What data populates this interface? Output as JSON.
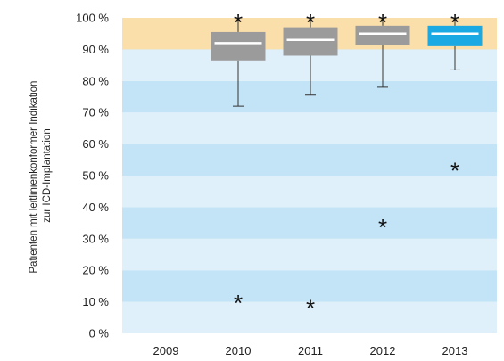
{
  "chart_data": {
    "type": "box",
    "ylabel_lines": [
      "Patienten mit leitlinienkonformer Indikation",
      "zur ICD-Implantation"
    ],
    "ylim": [
      0,
      100
    ],
    "y_ticks": [
      0,
      10,
      20,
      30,
      40,
      50,
      60,
      70,
      80,
      90,
      100
    ],
    "y_tick_labels": [
      "0 %",
      "10 %",
      "20 %",
      "30 %",
      "40 %",
      "50 %",
      "60 %",
      "70 %",
      "80 %",
      "90 %",
      "100 %"
    ],
    "categories": [
      "2009",
      "2010",
      "2011",
      "2012",
      "2013"
    ],
    "target_band": [
      90,
      100
    ],
    "boxes": [
      null,
      {
        "whisker_low": 72.0,
        "q1": 86.5,
        "median": 92.0,
        "q3": 95.5,
        "whisker_high": 100,
        "outliers": [
          100,
          11
        ]
      },
      {
        "whisker_low": 75.5,
        "q1": 88.0,
        "median": 93.0,
        "q3": 97.0,
        "whisker_high": 100,
        "outliers": [
          100,
          9.5
        ]
      },
      {
        "whisker_low": 78.0,
        "q1": 91.5,
        "median": 95.0,
        "q3": 97.5,
        "whisker_high": 100,
        "outliers": [
          100,
          35
        ]
      },
      {
        "whisker_low": 83.5,
        "q1": 91.0,
        "median": 95.0,
        "q3": 97.5,
        "whisker_high": 100,
        "outliers": [
          100,
          53
        ],
        "highlight": true
      }
    ],
    "colors": {
      "band_dark": "#c3e3f6",
      "band_light": "#dff0fa",
      "target": "#fbdfaa",
      "box": "#9b9b9b",
      "box_highlight": "#1aa9e2",
      "median": "#ffffff",
      "whisker": "#333333"
    }
  }
}
